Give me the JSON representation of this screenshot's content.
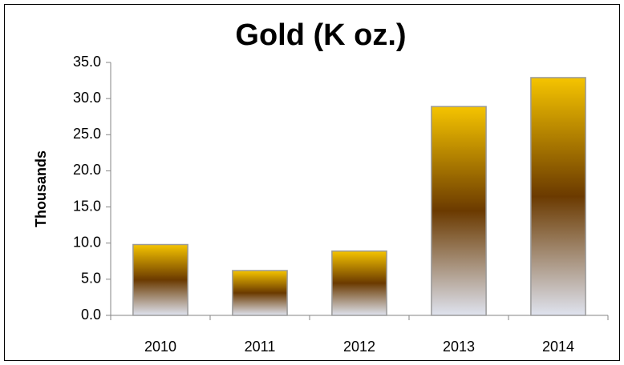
{
  "chart_data": {
    "type": "bar",
    "title": "Gold (K oz.)",
    "y_label": "Thousands",
    "categories": [
      "2010",
      "2011",
      "2012",
      "2013",
      "2014"
    ],
    "values": [
      9.8,
      6.2,
      8.9,
      28.9,
      32.9
    ],
    "color": "#f5c400",
    "ylim": [
      0,
      35
    ],
    "yticks": [
      {
        "value": 0,
        "label": "0.0"
      },
      {
        "value": 5,
        "label": "5.0"
      },
      {
        "value": 10,
        "label": "10.0"
      },
      {
        "value": 15,
        "label": "15.0"
      },
      {
        "value": 20,
        "label": "20.0"
      },
      {
        "value": 25,
        "label": "25.0"
      },
      {
        "value": 30,
        "label": "30.0"
      },
      {
        "value": 35,
        "label": "35.0"
      }
    ],
    "grid": false
  }
}
